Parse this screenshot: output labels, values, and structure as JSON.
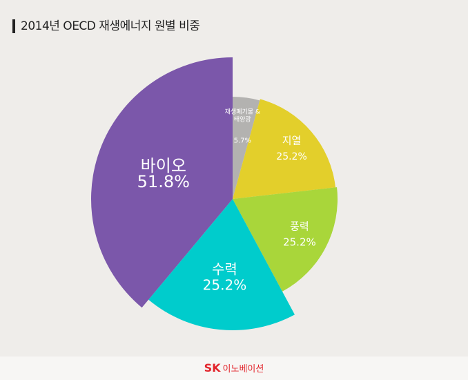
{
  "chart_data": {
    "type": "pie",
    "title": "2014년 OECD 재생에너지 원별 비중",
    "categories": [
      "재생폐기물 & 태양광",
      "지열",
      "풍력",
      "수력",
      "바이오"
    ],
    "values": [
      5.7,
      25.2,
      25.2,
      25.2,
      51.8
    ],
    "value_labels": [
      "5.7%",
      "25.2%",
      "25.2%",
      "25.2%",
      "51.8%"
    ],
    "colors": [
      "#b3b2b0",
      "#e3cf2b",
      "#a9d63a",
      "#00cccc",
      "#7b57aa"
    ]
  },
  "footer": {
    "logo": "SK",
    "name": "이노베이션"
  }
}
